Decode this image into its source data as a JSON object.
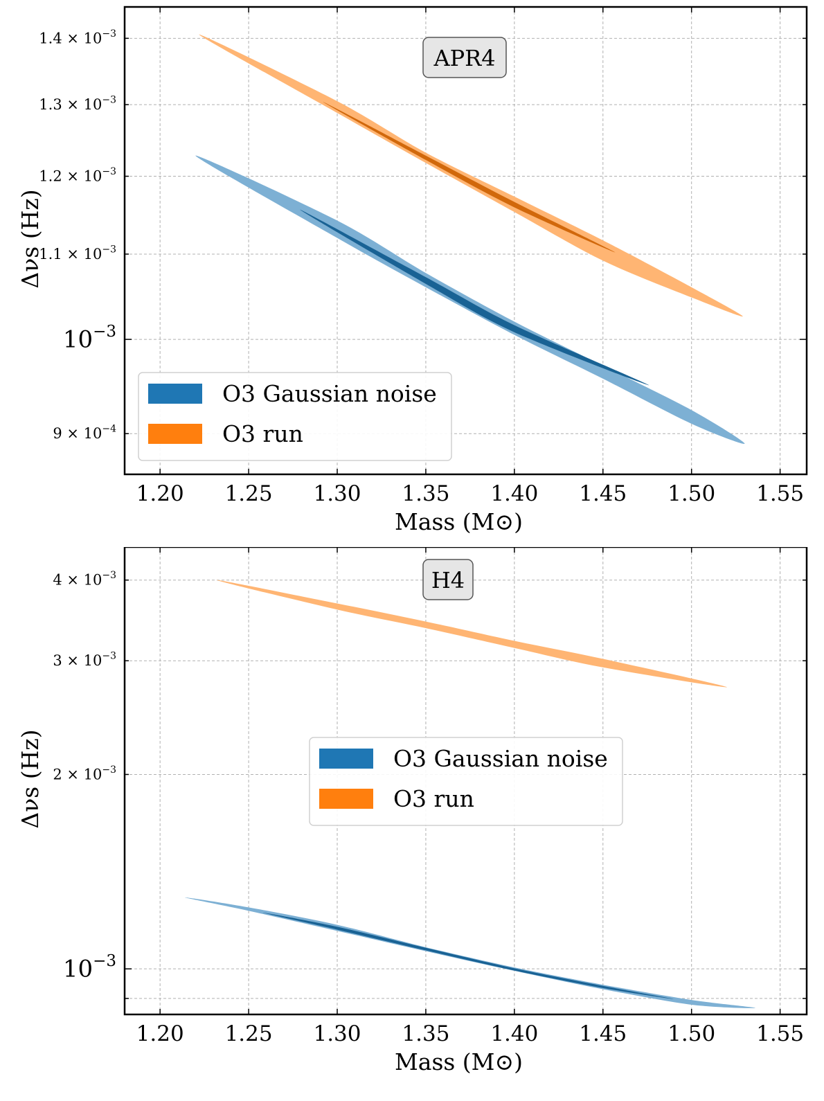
{
  "chart_data": [
    {
      "type": "area",
      "panel_label": "APR4",
      "xlabel": "Mass (M⊙)",
      "ylabel": "Δνs (Hz)",
      "xlim": [
        1.18,
        1.565
      ],
      "ylim": [
        0.00086,
        0.00145
      ],
      "yscale": "log",
      "grid": true,
      "legend_placement": "lower-left",
      "x_ticks": [
        1.2,
        1.25,
        1.3,
        1.35,
        1.4,
        1.45,
        1.5,
        1.55
      ],
      "x_tick_labels": [
        "1.20",
        "1.25",
        "1.30",
        "1.35",
        "1.40",
        "1.45",
        "1.50",
        "1.55"
      ],
      "y_ticks": [
        {
          "value": 0.0009,
          "mant": "9 × 10",
          "exp": "−4",
          "major": false
        },
        {
          "value": 0.001,
          "mant": "10",
          "exp": "−3",
          "major": true
        },
        {
          "value": 0.0011,
          "mant": "1.1 × 10",
          "exp": "−3",
          "major": false
        },
        {
          "value": 0.0012,
          "mant": "1.2 × 10",
          "exp": "−3",
          "major": false
        },
        {
          "value": 0.0013,
          "mant": "1.3 × 10",
          "exp": "−3",
          "major": false
        },
        {
          "value": 0.0014,
          "mant": "1.4 × 10",
          "exp": "−3",
          "major": false
        }
      ],
      "series": [
        {
          "name": "O3 run",
          "color": "#ff7f0e",
          "outer": {
            "start": [
              1.222,
              0.001406
            ],
            "end": [
              1.529,
              0.001026
            ],
            "upper": [
              [
                1.3,
                0.001305
              ],
              [
                1.35,
                0.001232
              ],
              [
                1.4,
                0.001173
              ],
              [
                1.45,
                0.001117
              ],
              [
                1.5,
                0.00106
              ]
            ],
            "lower": [
              [
                1.3,
                0.001288
              ],
              [
                1.35,
                0.001218
              ],
              [
                1.4,
                0.001153
              ],
              [
                1.45,
                0.001092
              ],
              [
                1.5,
                0.001048
              ]
            ]
          },
          "inner": {
            "start": [
              1.292,
              0.001304
            ],
            "end": [
              1.457,
              0.001102
            ],
            "upper": [
              [
                1.35,
                0.001228
              ],
              [
                1.4,
                0.001166
              ]
            ],
            "lower": [
              [
                1.35,
                0.001222
              ],
              [
                1.4,
                0.001159
              ]
            ]
          }
        },
        {
          "name": "O3 Gaussian noise",
          "color": "#1f77b4",
          "outer": {
            "start": [
              1.22,
              0.001228
            ],
            "end": [
              1.53,
              0.00089
            ],
            "upper": [
              [
                1.3,
                0.001142
              ],
              [
                1.35,
                0.001077
              ],
              [
                1.4,
                0.00102
              ],
              [
                1.45,
                0.000971
              ],
              [
                1.5,
                0.000924
              ]
            ],
            "lower": [
              [
                1.3,
                0.00112
              ],
              [
                1.35,
                0.00106
              ],
              [
                1.4,
                0.001005
              ],
              [
                1.45,
                0.000957
              ],
              [
                1.5,
                0.00091
              ]
            ]
          },
          "inner": {
            "start": [
              1.279,
              0.001156
            ],
            "end": [
              1.476,
              0.00095
            ],
            "upper": [
              [
                1.35,
                0.001072
              ],
              [
                1.4,
                0.001016
              ]
            ],
            "lower": [
              [
                1.35,
                0.001064
              ],
              [
                1.4,
                0.001008
              ]
            ]
          }
        }
      ]
    },
    {
      "type": "area",
      "panel_label": "H4",
      "xlabel": "Mass (M⊙)",
      "ylabel": "Δνs (Hz)",
      "xlim": [
        1.18,
        1.565
      ],
      "ylim": [
        0.00085,
        0.0045
      ],
      "yscale": "log",
      "grid": true,
      "legend_placement": "center",
      "x_ticks": [
        1.2,
        1.25,
        1.3,
        1.35,
        1.4,
        1.45,
        1.5,
        1.55
      ],
      "x_tick_labels": [
        "1.20",
        "1.25",
        "1.30",
        "1.35",
        "1.40",
        "1.45",
        "1.50",
        "1.55"
      ],
      "y_ticks": [
        {
          "value": 0.0009,
          "mant": "",
          "exp": "",
          "major": false
        },
        {
          "value": 0.001,
          "mant": "10",
          "exp": "−3",
          "major": true
        },
        {
          "value": 0.002,
          "mant": "2 × 10",
          "exp": "−3",
          "major": false
        },
        {
          "value": 0.003,
          "mant": "3 × 10",
          "exp": "−3",
          "major": false
        },
        {
          "value": 0.004,
          "mant": "4 × 10",
          "exp": "−3",
          "major": false
        }
      ],
      "series": [
        {
          "name": "O3 run",
          "color": "#ff7f0e",
          "outer": {
            "start": [
              1.232,
              0.004
            ],
            "end": [
              1.52,
              0.00273
            ],
            "upper": [
              [
                1.3,
                0.00368
              ],
              [
                1.35,
                0.00345
              ],
              [
                1.4,
                0.00322
              ],
              [
                1.45,
                0.00302
              ]
            ],
            "lower": [
              [
                1.3,
                0.0036
              ],
              [
                1.35,
                0.00337
              ],
              [
                1.4,
                0.00314
              ],
              [
                1.45,
                0.00293
              ]
            ]
          },
          "inner": null
        },
        {
          "name": "O3 Gaussian noise",
          "color": "#1f77b4",
          "outer": {
            "start": [
              1.214,
              0.00129
            ],
            "end": [
              1.536,
              0.00087
            ],
            "upper": [
              [
                1.25,
                0.001245
              ],
              [
                1.3,
                0.00117
              ],
              [
                1.35,
                0.00108
              ],
              [
                1.4,
                0.001005
              ],
              [
                1.45,
                0.000945
              ],
              [
                1.5,
                0.000895
              ]
            ],
            "lower": [
              [
                1.25,
                0.00123
              ],
              [
                1.3,
                0.001145
              ],
              [
                1.35,
                0.001065
              ],
              [
                1.4,
                0.000993
              ],
              [
                1.45,
                0.00093
              ],
              [
                1.5,
                0.00088
              ]
            ]
          },
          "inner": {
            "start": [
              1.258,
              0.001222
            ],
            "end": [
              1.49,
              0.000898
            ],
            "upper": [
              [
                1.3,
                0.001162
              ],
              [
                1.35,
                0.001078
              ],
              [
                1.4,
                0.001002
              ],
              [
                1.45,
                0.000941
              ]
            ],
            "lower": [
              [
                1.3,
                0.00115
              ],
              [
                1.35,
                0.001068
              ],
              [
                1.4,
                0.000994
              ],
              [
                1.45,
                0.000934
              ]
            ]
          }
        }
      ]
    }
  ]
}
